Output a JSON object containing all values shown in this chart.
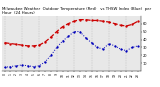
{
  "hours": [
    0,
    1,
    2,
    3,
    4,
    5,
    6,
    7,
    8,
    9,
    10,
    11,
    12,
    13,
    14,
    15,
    16,
    17,
    18,
    19,
    20,
    21,
    22,
    23
  ],
  "temp": [
    36,
    35,
    34,
    33,
    32,
    32,
    33,
    37,
    43,
    50,
    56,
    60,
    63,
    65,
    65,
    64,
    64,
    63,
    62,
    60,
    58,
    57,
    59,
    63
  ],
  "thsw": [
    5,
    6,
    7,
    8,
    7,
    6,
    7,
    12,
    20,
    30,
    38,
    44,
    50,
    50,
    42,
    36,
    30,
    28,
    35,
    32,
    28,
    26,
    30,
    32
  ],
  "temp_color": "#cc0000",
  "thsw_color": "#0000bb",
  "title": "Milwaukee Weather  Outdoor Temperature (Red)   vs THSW Index (Blue)  per Hour  (24 Hours)",
  "title_fontsize": 2.8,
  "bg_color": "#ffffff",
  "plot_bg": "#e8e8e8",
  "ylim": [
    0,
    70
  ],
  "yticks": [
    10,
    20,
    30,
    40,
    50,
    60
  ],
  "grid_color": "#bbbbbb",
  "grid_positions": [
    0,
    3,
    6,
    9,
    12,
    15,
    18,
    21
  ]
}
